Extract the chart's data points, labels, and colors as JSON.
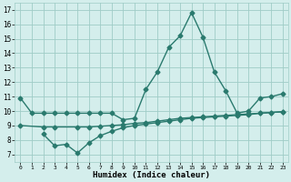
{
  "line1_x": [
    0,
    1,
    2,
    3,
    4,
    5,
    6,
    7,
    8,
    9,
    10,
    11,
    12,
    13,
    14,
    15,
    16,
    17,
    18,
    19,
    20,
    21,
    22,
    23
  ],
  "line1_y": [
    10.9,
    9.85,
    9.85,
    9.85,
    9.85,
    9.85,
    9.85,
    9.85,
    9.85,
    9.4,
    9.5,
    11.5,
    12.7,
    14.4,
    15.2,
    16.8,
    15.1,
    12.7,
    11.4,
    9.85,
    10.0,
    10.9,
    11.0,
    11.2
  ],
  "line2_x": [
    2,
    3,
    4,
    5,
    6,
    7,
    8,
    9,
    10,
    11,
    12,
    13,
    14,
    15,
    16,
    17,
    18,
    19,
    20,
    21,
    22,
    23
  ],
  "line2_y": [
    8.4,
    7.6,
    7.7,
    7.1,
    7.8,
    8.3,
    8.6,
    8.85,
    9.0,
    9.1,
    9.2,
    9.3,
    9.4,
    9.5,
    9.55,
    9.6,
    9.65,
    9.7,
    9.75,
    9.85,
    9.9,
    9.95
  ],
  "line3_x": [
    0,
    2,
    3,
    5,
    6,
    7,
    8,
    9,
    10,
    11,
    12,
    13,
    14,
    15,
    16,
    17,
    18,
    19,
    20,
    21,
    22,
    23
  ],
  "line3_y": [
    9.0,
    8.9,
    8.9,
    8.9,
    8.9,
    8.95,
    9.0,
    9.05,
    9.15,
    9.2,
    9.3,
    9.4,
    9.5,
    9.55,
    9.6,
    9.65,
    9.7,
    9.75,
    9.8,
    9.85,
    9.9,
    9.95
  ],
  "bg_color": "#d4eeec",
  "grid_color": "#9fccc6",
  "xlabel": "Humidex (Indice chaleur)",
  "xlim": [
    -0.5,
    23.5
  ],
  "ylim": [
    6.5,
    17.5
  ],
  "xticks": [
    0,
    1,
    2,
    3,
    4,
    5,
    6,
    7,
    8,
    9,
    10,
    11,
    12,
    13,
    14,
    15,
    16,
    17,
    18,
    19,
    20,
    21,
    22,
    23
  ],
  "yticks": [
    7,
    8,
    9,
    10,
    11,
    12,
    13,
    14,
    15,
    16,
    17
  ],
  "line_color": "#2a7a6e",
  "markersize": 2.5,
  "linewidth": 1.0
}
